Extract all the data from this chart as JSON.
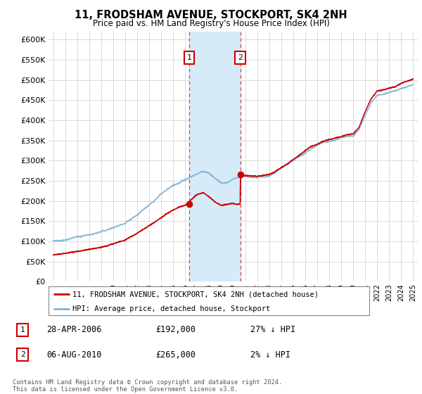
{
  "title": "11, FRODSHAM AVENUE, STOCKPORT, SK4 2NH",
  "subtitle": "Price paid vs. HM Land Registry's House Price Index (HPI)",
  "legend_line1": "11, FRODSHAM AVENUE, STOCKPORT, SK4 2NH (detached house)",
  "legend_line2": "HPI: Average price, detached house, Stockport",
  "transactions": [
    {
      "num": "1",
      "date": "28-APR-2006",
      "price": "£192,000",
      "hpi": "27% ↓ HPI"
    },
    {
      "num": "2",
      "date": "06-AUG-2010",
      "price": "£265,000",
      "hpi": "2% ↓ HPI"
    }
  ],
  "footnote": "Contains HM Land Registry data © Crown copyright and database right 2024.\nThis data is licensed under the Open Government Licence v3.0.",
  "sale1_year": 2006.32,
  "sale1_price": 192000,
  "sale2_year": 2010.59,
  "sale2_price": 265000,
  "shade_color": "#d6eaf8",
  "red_color": "#cc0000",
  "blue_color": "#7fb3d3",
  "marker_box_color": "#cc0000",
  "ylim": [
    0,
    620000
  ],
  "yticks": [
    0,
    50000,
    100000,
    150000,
    200000,
    250000,
    300000,
    350000,
    400000,
    450000,
    500000,
    550000,
    600000
  ],
  "xlim_start": 1994.6,
  "xlim_end": 2025.4,
  "background_color": "#ffffff",
  "grid_color": "#cccccc"
}
